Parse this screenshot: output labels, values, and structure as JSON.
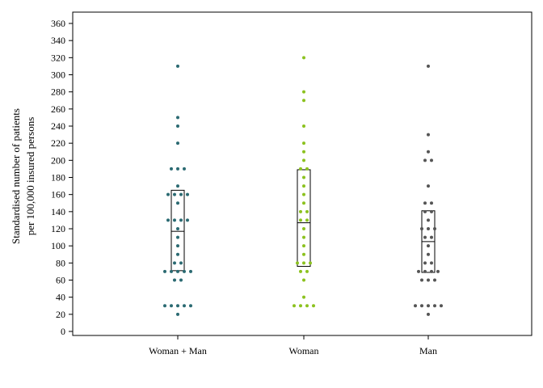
{
  "chart_data": {
    "type": "dot-plot-with-boxes",
    "ylabel_line1": "Standardised number of patients",
    "ylabel_line2": "per 100,000 insured persons",
    "ylim": [
      0,
      360
    ],
    "ytick_step": 20,
    "grid": false,
    "categories": [
      "Woman + Man",
      "Woman",
      "Man"
    ],
    "series": [
      {
        "color": "#2b6a72",
        "box": {
          "q1": 71,
          "median": 117,
          "q3": 165
        },
        "points": [
          20,
          30,
          30,
          30,
          30,
          30,
          60,
          60,
          70,
          70,
          70,
          70,
          70,
          80,
          80,
          90,
          100,
          110,
          120,
          130,
          130,
          130,
          130,
          150,
          160,
          160,
          160,
          160,
          170,
          190,
          190,
          190,
          220,
          240,
          250,
          310
        ]
      },
      {
        "color": "#8cc21f",
        "box": {
          "q1": 76,
          "median": 127,
          "q3": 189
        },
        "points": [
          30,
          30,
          30,
          30,
          40,
          60,
          70,
          70,
          80,
          80,
          80,
          90,
          100,
          110,
          120,
          130,
          130,
          140,
          140,
          150,
          160,
          170,
          180,
          190,
          190,
          200,
          210,
          220,
          240,
          270,
          280,
          320
        ]
      },
      {
        "color": "#555555",
        "box": {
          "q1": 69,
          "median": 105,
          "q3": 141
        },
        "points": [
          20,
          30,
          30,
          30,
          30,
          30,
          60,
          60,
          60,
          70,
          70,
          70,
          70,
          80,
          80,
          90,
          100,
          110,
          110,
          120,
          120,
          120,
          130,
          140,
          140,
          150,
          150,
          170,
          200,
          200,
          210,
          230,
          310
        ]
      }
    ]
  }
}
